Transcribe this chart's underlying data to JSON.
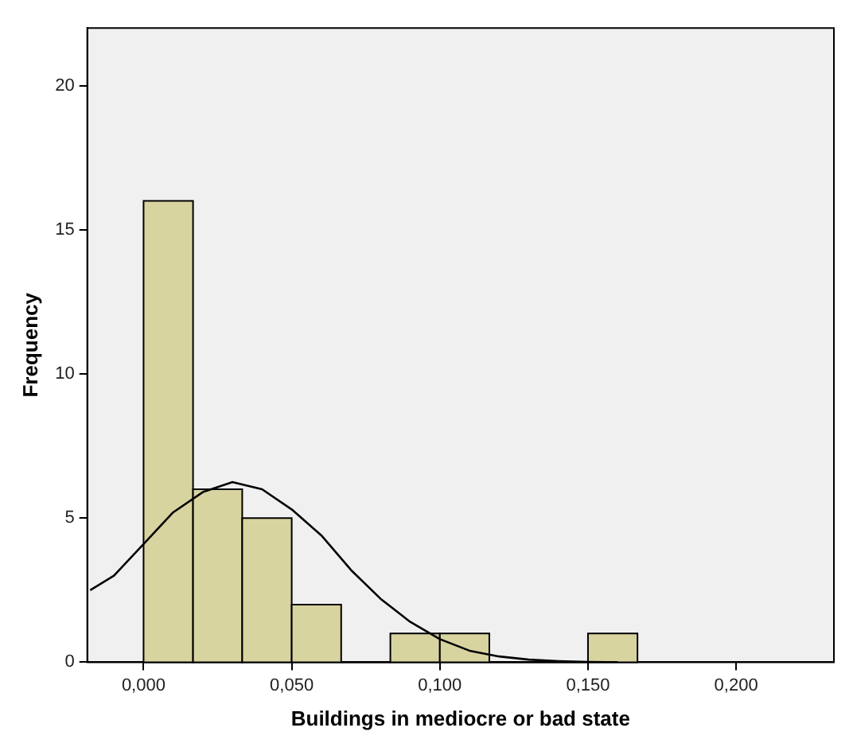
{
  "chart_data": {
    "type": "histogram",
    "xlabel": "Buildings in mediocre or bad state",
    "ylabel": "Frequency",
    "bins": [
      0,
      0.0167,
      0.0333,
      0.05,
      0.0667,
      0.0833,
      0.1,
      0.1167,
      0.1333,
      0.15,
      0.1667
    ],
    "values": [
      16,
      6,
      5,
      2,
      0,
      1,
      1,
      0,
      0,
      1
    ],
    "color": "#d8d4a0",
    "series": [
      {
        "type": "line",
        "color": "#000000",
        "x": [
          -0.018,
          -0.01,
          0,
          0.01,
          0.02,
          0.03,
          0.04,
          0.05,
          0.06,
          0.07,
          0.08,
          0.09,
          0.1,
          0.11,
          0.12,
          0.13,
          0.14,
          0.15,
          0.16
        ],
        "values": [
          2.5,
          3.0,
          4.1,
          5.2,
          5.9,
          6.25,
          6.0,
          5.3,
          4.4,
          3.2,
          2.2,
          1.4,
          0.8,
          0.4,
          0.2,
          0.09,
          0.04,
          0.01,
          0
        ]
      }
    ],
    "xlim": [
      -0.019,
      0.233
    ],
    "ylim": [
      0,
      22
    ],
    "xticks": [
      {
        "value": 0,
        "label": "0,000"
      },
      {
        "value": 0.05,
        "label": "0,050"
      },
      {
        "value": 0.1,
        "label": "0,100"
      },
      {
        "value": 0.15,
        "label": "0,150"
      },
      {
        "value": 0.2,
        "label": "0,200"
      }
    ],
    "yticks": [
      0,
      5,
      10,
      15,
      20
    ],
    "grid": false,
    "legend": false,
    "marker": "none"
  }
}
